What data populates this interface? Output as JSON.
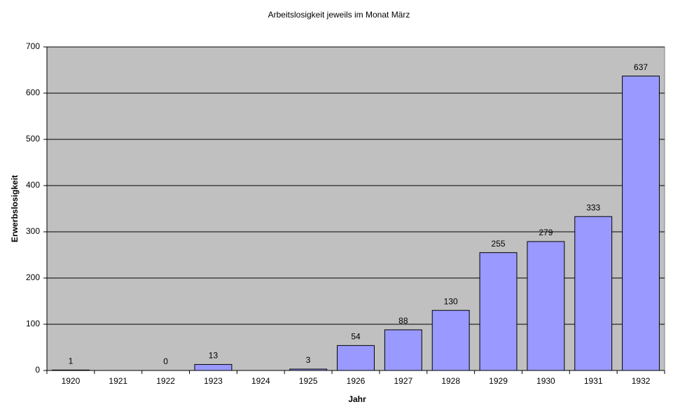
{
  "chart_data": {
    "type": "bar",
    "title": "Arbeitslosigkeit jeweils im Monat März",
    "x_label": "Jahr",
    "y_label": "Erwerbslosigkeit",
    "categories": [
      "1920",
      "1921",
      "1922",
      "1923",
      "1924",
      "1925",
      "1926",
      "1927",
      "1928",
      "1929",
      "1930",
      "1931",
      "1932"
    ],
    "values": [
      1,
      null,
      0,
      13,
      null,
      3,
      54,
      88,
      130,
      255,
      279,
      333,
      637
    ],
    "color": "#9999ff",
    "ylim": [
      0,
      700
    ],
    "yticks": [
      0,
      100,
      200,
      300,
      400,
      500,
      600,
      700
    ],
    "grid": true
  }
}
